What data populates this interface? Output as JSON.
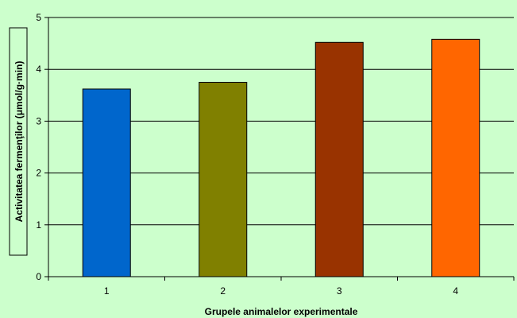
{
  "chart_data": {
    "type": "bar",
    "title": "",
    "xlabel": "Grupele animalelor experimentale",
    "ylabel": "Activitatea fermenţilor   (μmol/g·min)",
    "categories": [
      "1",
      "2",
      "3",
      "4"
    ],
    "values": [
      3.62,
      3.75,
      4.52,
      4.58
    ],
    "colors": [
      "#0066cc",
      "#808000",
      "#993300",
      "#ff6600"
    ],
    "ylim": [
      0,
      5
    ],
    "yticks": [
      "0",
      "1",
      "2",
      "3",
      "4",
      "5"
    ],
    "grid": true,
    "legend": "none",
    "plot_background": "#ccffcc",
    "gridline_color": "#000000"
  }
}
